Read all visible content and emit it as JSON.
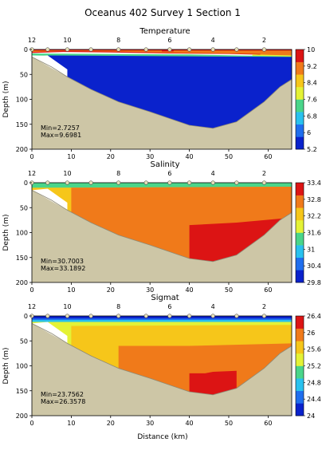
{
  "title": "Oceanus 402 Survey 1 Section 1",
  "xlabel": "Distance (km)",
  "ylabel": "Depth (m)",
  "station_numbers": [
    "12",
    "10",
    "8",
    "6",
    "4",
    "2"
  ],
  "colors": {
    "terrain": "#cdc6a6",
    "bottom_line": "#8e8a75",
    "station_marker": "#e8e0b8"
  },
  "chart_data": [
    {
      "type": "heatmap",
      "title": "Temperature",
      "xlabel": "Distance (km)",
      "ylabel": "Depth (m)",
      "xlim": [
        0,
        66
      ],
      "ylim": [
        200,
        0
      ],
      "x_ticks": [
        0,
        10,
        20,
        30,
        40,
        50,
        60
      ],
      "y_ticks": [
        0,
        50,
        100,
        150,
        200
      ],
      "station_positions_km": [
        0,
        4,
        9,
        15,
        22,
        29,
        35,
        40,
        46,
        52,
        59
      ],
      "bottom_profile": [
        [
          0,
          15
        ],
        [
          5,
          35
        ],
        [
          9,
          55
        ],
        [
          15,
          80
        ],
        [
          22,
          105
        ],
        [
          30,
          125
        ],
        [
          40,
          152
        ],
        [
          46,
          158
        ],
        [
          52,
          145
        ],
        [
          59,
          105
        ],
        [
          63,
          75
        ],
        [
          66,
          60
        ]
      ],
      "colorbar": {
        "min": 5.2,
        "max": 10,
        "tick_labels": [
          "10",
          "9.2",
          "8.4",
          "7.6",
          "6.8",
          "6",
          "5.2"
        ],
        "colors": [
          "#0a22cc",
          "#1f6eee",
          "#29c1ee",
          "#4ad58a",
          "#e4f236",
          "#f6c61a",
          "#f07a1a",
          "#dc1414"
        ]
      },
      "stats": {
        "min": "Min=2.7257",
        "max": "Max=9.6981"
      },
      "layers": [
        {
          "value": 9.6,
          "poly": [
            [
              0,
              0
            ],
            [
              66,
              0
            ],
            [
              66,
              12
            ],
            [
              50,
              9
            ],
            [
              35,
              8
            ],
            [
              20,
              6
            ],
            [
              8,
              5
            ],
            [
              0,
              7
            ]
          ]
        },
        {
          "value": 9.2,
          "poly": [
            [
              0,
              2
            ],
            [
              20,
              2
            ],
            [
              40,
              2
            ],
            [
              66,
              2
            ],
            [
              66,
              10
            ],
            [
              50,
              8
            ],
            [
              38,
              7
            ],
            [
              20,
              4
            ],
            [
              8,
              3
            ],
            [
              0,
              5
            ]
          ]
        },
        {
          "value": 9.8,
          "poly": [
            [
              33,
              0
            ],
            [
              36,
              0
            ],
            [
              36,
              4
            ],
            [
              33,
              4
            ]
          ]
        },
        {
          "value": 8.8,
          "poly": [
            [
              58,
              6
            ],
            [
              66,
              8
            ],
            [
              66,
              14
            ],
            [
              58,
              12
            ]
          ]
        },
        {
          "value": 8.0,
          "poly": [
            [
              56,
              10
            ],
            [
              66,
              12
            ],
            [
              66,
              17
            ],
            [
              56,
              15
            ]
          ]
        },
        {
          "value": 7.4,
          "poly": [
            [
              0,
              8
            ],
            [
              40,
              10
            ],
            [
              66,
              14
            ],
            [
              66,
              22
            ],
            [
              50,
              20
            ],
            [
              30,
              15
            ],
            [
              0,
              12
            ]
          ]
        },
        {
          "value": 6.6,
          "poly": [
            [
              20,
              12
            ],
            [
              50,
              16
            ],
            [
              66,
              20
            ],
            [
              66,
              30
            ],
            [
              50,
              26
            ],
            [
              20,
              20
            ]
          ]
        },
        {
          "value": 5.6,
          "poly": [
            [
              4,
              12
            ],
            [
              66,
              15
            ],
            [
              66,
              200
            ],
            [
              4,
              200
            ]
          ]
        }
      ]
    },
    {
      "type": "heatmap",
      "title": "Salinity",
      "xlabel": "Distance (km)",
      "ylabel": "Depth (m)",
      "xlim": [
        0,
        66
      ],
      "ylim": [
        200,
        0
      ],
      "x_ticks": [
        0,
        10,
        20,
        30,
        40,
        50,
        60
      ],
      "y_ticks": [
        0,
        50,
        100,
        150,
        200
      ],
      "station_positions_km": [
        0,
        4,
        9,
        15,
        22,
        29,
        35,
        40,
        46,
        52,
        59
      ],
      "bottom_profile": [
        [
          0,
          15
        ],
        [
          5,
          35
        ],
        [
          9,
          55
        ],
        [
          15,
          80
        ],
        [
          22,
          105
        ],
        [
          30,
          125
        ],
        [
          40,
          152
        ],
        [
          46,
          158
        ],
        [
          52,
          145
        ],
        [
          59,
          105
        ],
        [
          63,
          75
        ],
        [
          66,
          60
        ]
      ],
      "colorbar": {
        "min": 29.8,
        "max": 33.4,
        "tick_labels": [
          "33.4",
          "32.8",
          "32.2",
          "31.6",
          "31",
          "30.4",
          "29.8"
        ],
        "colors": [
          "#0a22cc",
          "#1f6eee",
          "#29c1ee",
          "#4ad58a",
          "#e4f236",
          "#f6c61a",
          "#f07a1a",
          "#dc1414"
        ]
      },
      "stats": {
        "min": "Min=30.7003",
        "max": "Max=33.1892"
      },
      "layers": [
        {
          "value": 31.5,
          "poly": [
            [
              0,
              0
            ],
            [
              66,
              0
            ],
            [
              66,
              20
            ],
            [
              0,
              20
            ]
          ]
        },
        {
          "value": 32.1,
          "poly": [
            [
              0,
              10
            ],
            [
              66,
              8
            ],
            [
              66,
              200
            ],
            [
              0,
              200
            ]
          ]
        },
        {
          "value": 32.5,
          "poly": [
            [
              10,
              10
            ],
            [
              66,
              8
            ],
            [
              66,
              200
            ],
            [
              10,
              200
            ]
          ]
        },
        {
          "value": 32.7,
          "poly": [
            [
              15,
              20
            ],
            [
              66,
              15
            ],
            [
              66,
              200
            ],
            [
              15,
              200
            ]
          ]
        },
        {
          "value": 32.9,
          "poly": [
            [
              22,
              45
            ],
            [
              40,
              45
            ],
            [
              66,
              40
            ],
            [
              66,
              200
            ],
            [
              22,
              200
            ]
          ]
        },
        {
          "value": 33.05,
          "poly": [
            [
              40,
              85
            ],
            [
              52,
              80
            ],
            [
              66,
              70
            ],
            [
              66,
              200
            ],
            [
              40,
              200
            ]
          ]
        },
        {
          "value": 33.2,
          "poly": [
            [
              44,
              135
            ],
            [
              46,
              135
            ],
            [
              46,
              200
            ],
            [
              44,
              200
            ]
          ]
        }
      ]
    },
    {
      "type": "heatmap",
      "title": "Sigmat",
      "xlabel": "Distance (km)",
      "ylabel": "Depth (m)",
      "xlim": [
        0,
        66
      ],
      "ylim": [
        200,
        0
      ],
      "x_ticks": [
        0,
        10,
        20,
        30,
        40,
        50,
        60
      ],
      "y_ticks": [
        0,
        50,
        100,
        150,
        200
      ],
      "station_positions_km": [
        0,
        4,
        9,
        15,
        22,
        29,
        35,
        40,
        46,
        52,
        59
      ],
      "bottom_profile": [
        [
          0,
          15
        ],
        [
          5,
          35
        ],
        [
          9,
          55
        ],
        [
          15,
          80
        ],
        [
          22,
          105
        ],
        [
          30,
          125
        ],
        [
          40,
          152
        ],
        [
          46,
          158
        ],
        [
          52,
          145
        ],
        [
          59,
          105
        ],
        [
          63,
          75
        ],
        [
          66,
          60
        ]
      ],
      "colorbar": {
        "min": 24,
        "max": 26.4,
        "tick_labels": [
          "26.4",
          "26",
          "25.6",
          "25.2",
          "24.8",
          "24.4",
          "24"
        ],
        "colors": [
          "#0a22cc",
          "#1f6eee",
          "#29c1ee",
          "#4ad58a",
          "#e4f236",
          "#f6c61a",
          "#f07a1a",
          "#dc1414"
        ]
      },
      "stats": {
        "min": "Min=23.7562",
        "max": "Max=26.3578"
      },
      "layers": [
        {
          "value": 24.1,
          "poly": [
            [
              0,
              0
            ],
            [
              66,
              0
            ],
            [
              66,
              8
            ],
            [
              0,
              8
            ]
          ]
        },
        {
          "value": 24.5,
          "poly": [
            [
              0,
              5
            ],
            [
              66,
              5
            ],
            [
              66,
              12
            ],
            [
              0,
              12
            ]
          ]
        },
        {
          "value": 24.9,
          "poly": [
            [
              0,
              8
            ],
            [
              66,
              8
            ],
            [
              66,
              16
            ],
            [
              0,
              16
            ]
          ]
        },
        {
          "value": 25.3,
          "poly": [
            [
              0,
              12
            ],
            [
              66,
              12
            ],
            [
              66,
              200
            ],
            [
              0,
              200
            ]
          ]
        },
        {
          "value": 25.5,
          "poly": [
            [
              10,
              20
            ],
            [
              66,
              18
            ],
            [
              66,
              200
            ],
            [
              10,
              200
            ]
          ]
        },
        {
          "value": 25.7,
          "poly": [
            [
              15,
              40
            ],
            [
              66,
              35
            ],
            [
              66,
              200
            ],
            [
              15,
              200
            ]
          ]
        },
        {
          "value": 25.9,
          "poly": [
            [
              22,
              60
            ],
            [
              40,
              60
            ],
            [
              66,
              55
            ],
            [
              66,
              200
            ],
            [
              22,
              200
            ]
          ]
        },
        {
          "value": 26.05,
          "poly": [
            [
              35,
              90
            ],
            [
              52,
              85
            ],
            [
              66,
              80
            ],
            [
              66,
              200
            ],
            [
              35,
              200
            ]
          ]
        },
        {
          "value": 26.3,
          "poly": [
            [
              40,
              115
            ],
            [
              44,
              115
            ],
            [
              46,
              112
            ],
            [
              52,
              110
            ],
            [
              52,
              200
            ],
            [
              40,
              200
            ]
          ]
        }
      ]
    }
  ]
}
